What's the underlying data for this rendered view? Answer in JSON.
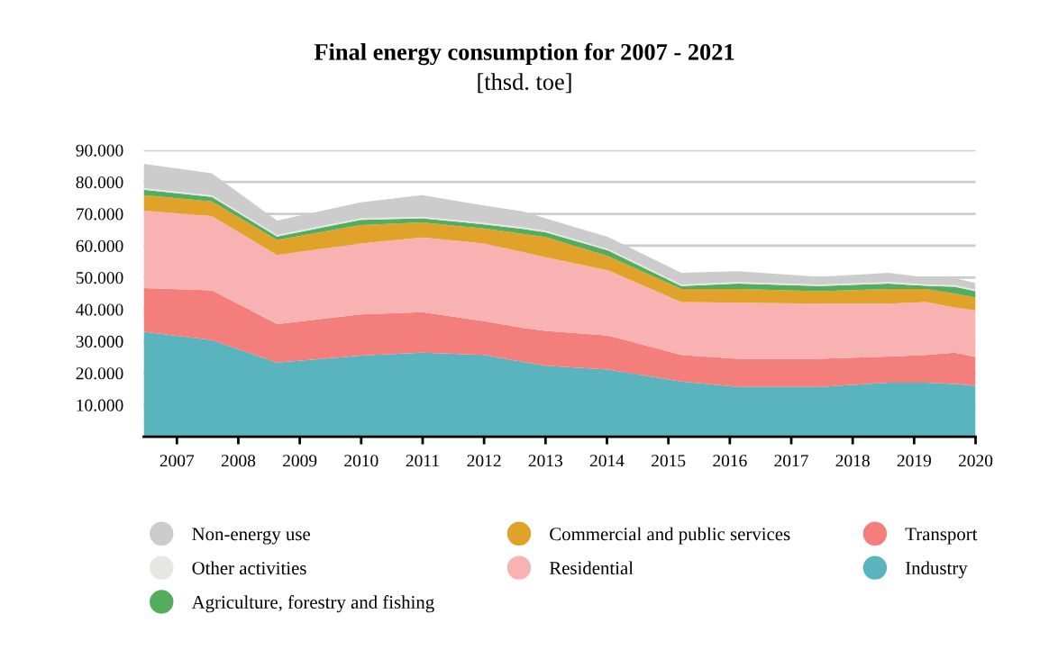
{
  "chart_data": {
    "type": "area",
    "stacked": true,
    "title": "Final energy consumption for 2007 - 2021",
    "subtitle": "[thsd. toe]",
    "x": [
      2006.46,
      2007.57,
      2008.63,
      2009.99,
      2010.99,
      2012.0,
      2012.63,
      2013.0,
      2014.02,
      2015.21,
      2016.13,
      2017.46,
      2018.59,
      2019.19,
      2019.66,
      2020.0
    ],
    "series": [
      {
        "name": "Industry",
        "color": "#5ab4bd",
        "values": [
          33000,
          30400,
          23300,
          25500,
          26400,
          25700,
          23500,
          22300,
          21100,
          17400,
          15700,
          15700,
          17000,
          17000,
          16600,
          16000
        ]
      },
      {
        "name": "Transport",
        "color": "#f37e7c",
        "values": [
          13700,
          15600,
          12100,
          12900,
          12700,
          10600,
          10700,
          11000,
          10700,
          8300,
          8800,
          8800,
          8200,
          8700,
          9800,
          9100
        ]
      },
      {
        "name": "Residential",
        "color": "#f8b2b2",
        "values": [
          24300,
          23300,
          21700,
          22300,
          23500,
          24400,
          23800,
          23100,
          20500,
          16600,
          17600,
          17300,
          16600,
          16600,
          14200,
          14700
        ]
      },
      {
        "name": "Commercial and public services",
        "color": "#e0a228",
        "values": [
          4900,
          4600,
          4700,
          5800,
          4700,
          4700,
          5700,
          6300,
          4400,
          4100,
          4300,
          3900,
          4600,
          4100,
          4400,
          3900
        ]
      },
      {
        "name": "Agriculture, forestry and fishing",
        "color": "#52ae5e",
        "values": [
          1700,
          1400,
          1100,
          1600,
          1300,
          1300,
          1600,
          1500,
          1800,
          900,
          1700,
          1600,
          1700,
          1000,
          2100,
          2000
        ]
      },
      {
        "name": "Other activities",
        "color": "#e6e6e5",
        "values": [
          500,
          500,
          500,
          500,
          500,
          500,
          500,
          500,
          500,
          500,
          500,
          500,
          500,
          500,
          500,
          500
        ]
      },
      {
        "name": "Non-energy use",
        "color": "#cccccc",
        "values": [
          7600,
          6900,
          4500,
          5000,
          6800,
          5400,
          5000,
          3900,
          3700,
          3700,
          3400,
          2400,
          2900,
          2100,
          2200,
          2100
        ]
      }
    ],
    "xlim": [
      2006.46,
      2020
    ],
    "xticks": [
      2007,
      2008,
      2009,
      2010,
      2011,
      2012,
      2013,
      2014,
      2015,
      2016,
      2017,
      2018,
      2019,
      2020
    ],
    "ylim": [
      0,
      90000
    ],
    "yticks": [
      {
        "value": 10000,
        "label": "10.000"
      },
      {
        "value": 20000,
        "label": "20.000"
      },
      {
        "value": 30000,
        "label": "30.000"
      },
      {
        "value": 40000,
        "label": "40.000"
      },
      {
        "value": 50000,
        "label": "50.000"
      },
      {
        "value": 60000,
        "label": "60.000"
      },
      {
        "value": 70000,
        "label": "70.000"
      },
      {
        "value": 80000,
        "label": "80.000"
      },
      {
        "value": 90000,
        "label": "90.000"
      }
    ],
    "grid": "y",
    "legend": "bottom"
  }
}
